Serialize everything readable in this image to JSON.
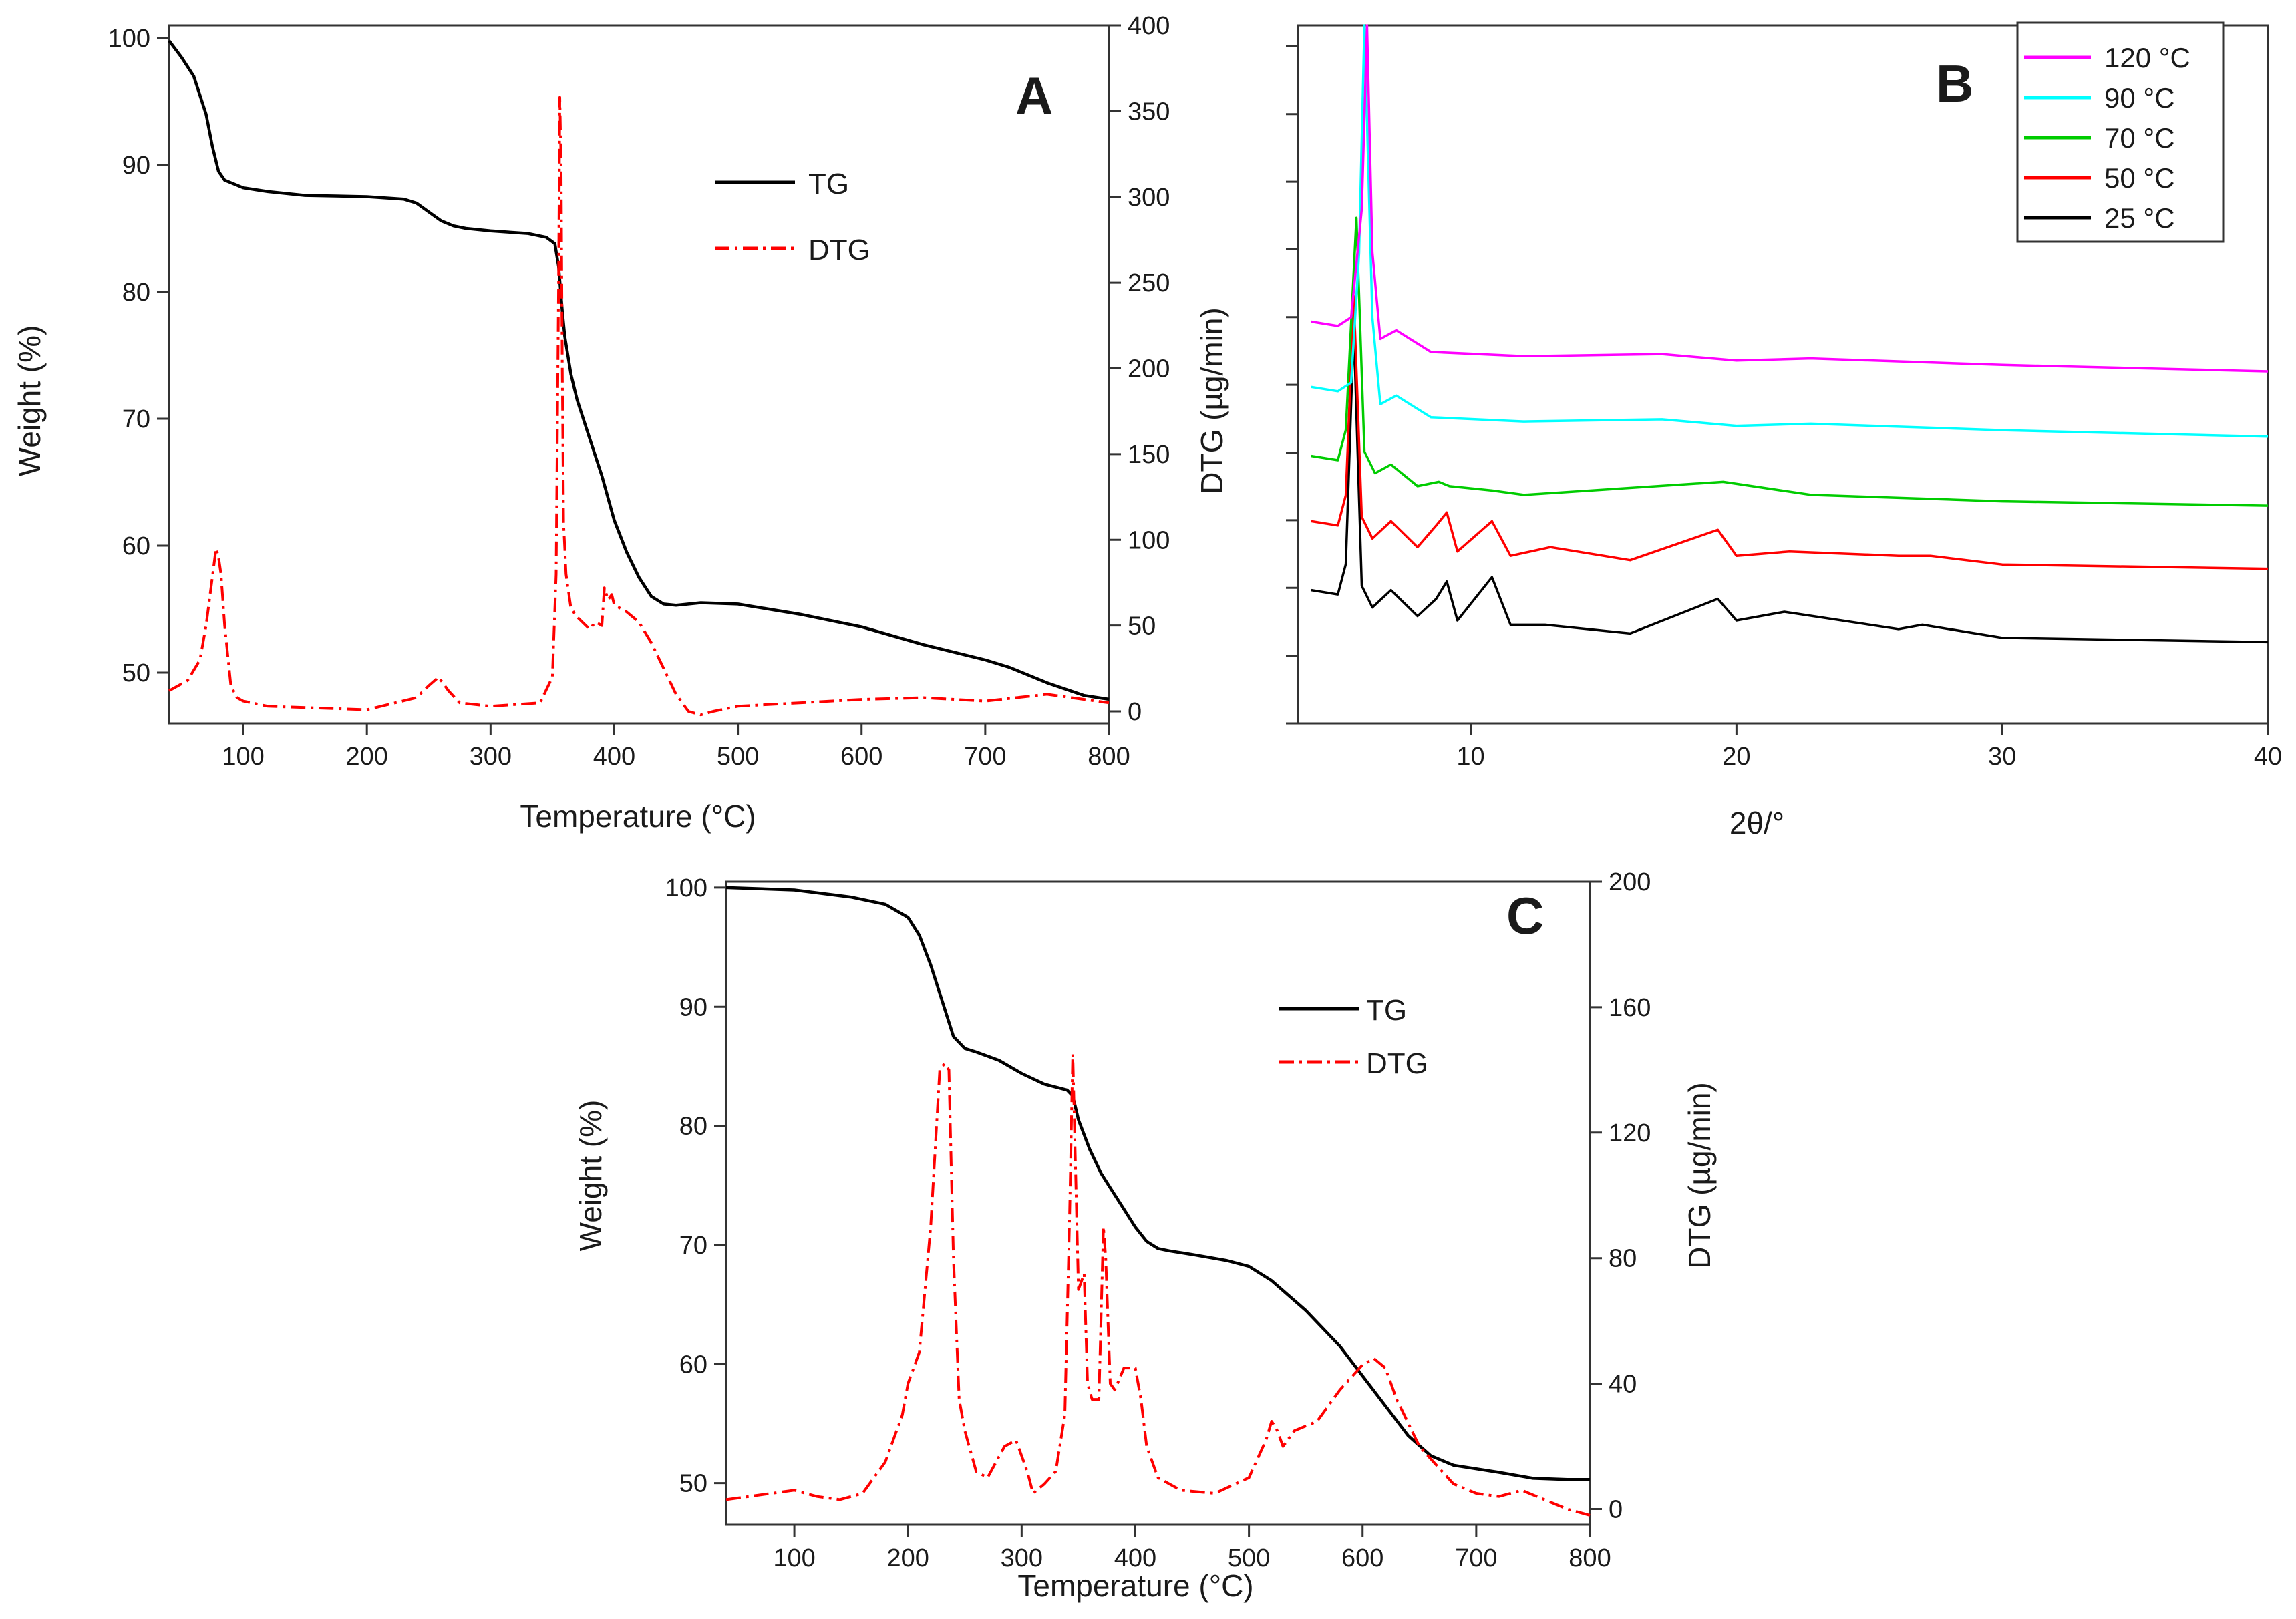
{
  "chart_data": [
    {
      "id": "A",
      "type": "line",
      "panel_label": "A",
      "xlabel": "Temperature (°C)",
      "ylabel": "Weight (%)",
      "y2label": "DTG (µg/min)",
      "xlim": [
        40,
        800
      ],
      "ylim": [
        46,
        101
      ],
      "y2lim": [
        -7,
        400
      ],
      "xticks": [
        100,
        200,
        300,
        400,
        500,
        600,
        700,
        800
      ],
      "yticks": [
        50,
        60,
        70,
        80,
        90,
        100
      ],
      "y2ticks": [
        0,
        50,
        100,
        150,
        200,
        250,
        300,
        350,
        400
      ],
      "legend_position": "top-right",
      "series": [
        {
          "name": "TG",
          "axis": "left",
          "color": "#000000",
          "dash": "solid",
          "x": [
            40,
            50,
            60,
            70,
            75,
            80,
            85,
            90,
            100,
            120,
            150,
            200,
            230,
            240,
            250,
            260,
            270,
            280,
            300,
            330,
            345,
            352,
            355,
            358,
            360,
            365,
            370,
            380,
            390,
            400,
            410,
            420,
            430,
            440,
            450,
            460,
            470,
            500,
            550,
            600,
            650,
            700,
            720,
            750,
            780,
            800
          ],
          "y": [
            99.8,
            98.5,
            97,
            94,
            91.5,
            89.5,
            88.8,
            88.6,
            88.2,
            87.9,
            87.6,
            87.5,
            87.3,
            87,
            86.3,
            85.6,
            85.2,
            85,
            84.8,
            84.6,
            84.3,
            83.8,
            82,
            78.5,
            76.5,
            73.5,
            71.5,
            68.5,
            65.5,
            62,
            59.5,
            57.5,
            56,
            55.4,
            55.3,
            55.4,
            55.5,
            55.4,
            54.6,
            53.6,
            52.2,
            51,
            50.4,
            49.2,
            48.2,
            47.9
          ]
        },
        {
          "name": "DTG",
          "axis": "right",
          "color": "#ff0000",
          "dash": "dashdot",
          "x": [
            40,
            55,
            65,
            70,
            75,
            78,
            80,
            82,
            85,
            90,
            95,
            100,
            120,
            200,
            240,
            250,
            258,
            266,
            275,
            300,
            340,
            350,
            353,
            355,
            356,
            357,
            358,
            359,
            361,
            365,
            370,
            380,
            385,
            390,
            392,
            395,
            398,
            400,
            410,
            420,
            430,
            440,
            450,
            460,
            470,
            480,
            500,
            600,
            650,
            700,
            750,
            800
          ],
          "y": [
            12,
            18,
            30,
            50,
            78,
            95,
            90,
            80,
            50,
            15,
            8,
            6,
            3,
            1,
            8,
            15,
            20,
            12,
            5,
            3,
            5,
            20,
            80,
            250,
            358,
            320,
            200,
            110,
            80,
            60,
            55,
            48,
            52,
            50,
            72,
            65,
            68,
            62,
            58,
            52,
            40,
            25,
            10,
            0,
            -2,
            0,
            3,
            7,
            8,
            6,
            10,
            5
          ]
        }
      ]
    },
    {
      "id": "B",
      "type": "line",
      "panel_label": "B",
      "xlabel": "2θ/°",
      "ylabel": "",
      "xlim": [
        3.5,
        40
      ],
      "xticks": [
        10,
        20,
        30,
        40
      ],
      "legend_position": "top-right",
      "series": [
        {
          "name": "120 °C",
          "color": "#ff00ff",
          "offset": 0.94,
          "x": [
            4,
            5,
            5.5,
            5.9,
            6.1,
            6.3,
            6.6,
            7.2,
            8.5,
            12,
            17.2,
            20,
            22.8,
            30,
            40
          ],
          "y": [
            0.14,
            0.13,
            0.15,
            0.4,
            1.2,
            0.3,
            0.1,
            0.12,
            0.07,
            0.06,
            0.065,
            0.05,
            0.055,
            0.04,
            0.025
          ]
        },
        {
          "name": "90 °C",
          "color": "#00ffff",
          "offset": 0.76,
          "x": [
            4,
            5,
            5.5,
            5.8,
            6.0,
            6.3,
            6.6,
            7.2,
            8.5,
            12,
            17.2,
            20,
            22.8,
            30,
            40
          ],
          "y": [
            0.14,
            0.13,
            0.15,
            0.45,
            1.28,
            0.3,
            0.1,
            0.12,
            0.07,
            0.06,
            0.065,
            0.05,
            0.055,
            0.04,
            0.025
          ]
        },
        {
          "name": "70 °C",
          "color": "#00cc00",
          "offset": 0.57,
          "x": [
            4,
            5,
            5.3,
            5.7,
            6.0,
            6.4,
            7.0,
            8.0,
            8.8,
            9.2,
            10.8,
            12,
            19.5,
            22.8,
            30,
            40
          ],
          "y": [
            0.14,
            0.13,
            0.2,
            0.69,
            0.15,
            0.1,
            0.12,
            0.07,
            0.08,
            0.07,
            0.06,
            0.05,
            0.08,
            0.05,
            0.035,
            0.025
          ]
        },
        {
          "name": "50 °C",
          "color": "#ff0000",
          "offset": 0.39,
          "x": [
            4,
            5,
            5.3,
            5.6,
            5.9,
            6.3,
            7.0,
            8.0,
            8.7,
            9.1,
            9.5,
            10.8,
            11.5,
            13.0,
            16,
            19.3,
            20,
            22,
            26.1,
            27.3,
            30,
            40
          ],
          "y": [
            0.14,
            0.13,
            0.2,
            0.66,
            0.15,
            0.1,
            0.14,
            0.08,
            0.13,
            0.16,
            0.07,
            0.14,
            0.06,
            0.08,
            0.05,
            0.12,
            0.06,
            0.07,
            0.06,
            0.06,
            0.04,
            0.03
          ]
        },
        {
          "name": "25 °C",
          "color": "#000000",
          "offset": 0.2,
          "x": [
            4,
            5,
            5.3,
            5.6,
            5.9,
            6.3,
            7.0,
            8.0,
            8.7,
            9.1,
            9.5,
            10.8,
            11.5,
            12.8,
            16,
            19.3,
            20,
            21.8,
            26.1,
            27.0,
            30,
            40
          ],
          "y": [
            0.14,
            0.13,
            0.2,
            0.75,
            0.15,
            0.1,
            0.14,
            0.08,
            0.12,
            0.16,
            0.07,
            0.17,
            0.06,
            0.06,
            0.04,
            0.12,
            0.07,
            0.09,
            0.05,
            0.06,
            0.03,
            0.02
          ]
        }
      ]
    },
    {
      "id": "C",
      "type": "line",
      "panel_label": "C",
      "xlabel": "Temperature (°C)",
      "ylabel": "Weight (%)",
      "y2label": "DTG (µg/min)",
      "xlim": [
        40,
        800
      ],
      "ylim": [
        46.5,
        100.5
      ],
      "y2lim": [
        -5,
        200
      ],
      "xticks": [
        100,
        200,
        300,
        400,
        500,
        600,
        700,
        800
      ],
      "yticks": [
        50,
        60,
        70,
        80,
        90,
        100
      ],
      "y2ticks": [
        0,
        40,
        80,
        120,
        160,
        200
      ],
      "legend_position": "top-right",
      "series": [
        {
          "name": "TG",
          "axis": "left",
          "color": "#000000",
          "dash": "solid",
          "x": [
            40,
            100,
            150,
            180,
            200,
            210,
            220,
            230,
            240,
            250,
            260,
            280,
            300,
            320,
            340,
            345,
            350,
            360,
            370,
            380,
            390,
            400,
            410,
            420,
            430,
            450,
            480,
            500,
            520,
            550,
            580,
            600,
            620,
            640,
            660,
            680,
            700,
            720,
            750,
            780,
            800
          ],
          "y": [
            100,
            99.8,
            99.2,
            98.6,
            97.5,
            96,
            93.5,
            90.5,
            87.5,
            86.5,
            86.2,
            85.5,
            84.4,
            83.5,
            83,
            82.5,
            80.5,
            78,
            76,
            74.5,
            73,
            71.5,
            70.3,
            69.7,
            69.5,
            69.2,
            68.7,
            68.2,
            67,
            64.5,
            61.5,
            59,
            56.5,
            54,
            52.3,
            51.5,
            51.2,
            50.9,
            50.4,
            50.3,
            50.3
          ]
        },
        {
          "name": "DTG",
          "axis": "right",
          "color": "#ff0000",
          "dash": "dashdot",
          "x": [
            40,
            60,
            80,
            100,
            120,
            140,
            160,
            180,
            195,
            200,
            210,
            220,
            228,
            232,
            236,
            240,
            245,
            250,
            260,
            270,
            285,
            295,
            305,
            310,
            320,
            330,
            338,
            342,
            345,
            350,
            355,
            358,
            362,
            368,
            372,
            374,
            376,
            378,
            382,
            390,
            400,
            405,
            410,
            420,
            440,
            470,
            500,
            515,
            520,
            525,
            530,
            540,
            560,
            580,
            600,
            610,
            620,
            630,
            650,
            680,
            700,
            720,
            740,
            760,
            780,
            800
          ],
          "y": [
            3,
            4,
            5,
            6,
            4,
            3,
            5,
            15,
            30,
            40,
            50,
            90,
            140,
            142,
            140,
            80,
            35,
            25,
            12,
            10,
            20,
            22,
            12,
            5,
            8,
            12,
            30,
            90,
            145,
            70,
            75,
            40,
            35,
            35,
            90,
            80,
            60,
            40,
            38,
            45,
            45,
            35,
            20,
            10,
            6,
            5,
            10,
            22,
            28,
            25,
            20,
            25,
            28,
            38,
            46,
            48,
            45,
            35,
            20,
            8,
            5,
            4,
            6,
            3,
            0,
            -2
          ]
        }
      ]
    }
  ]
}
